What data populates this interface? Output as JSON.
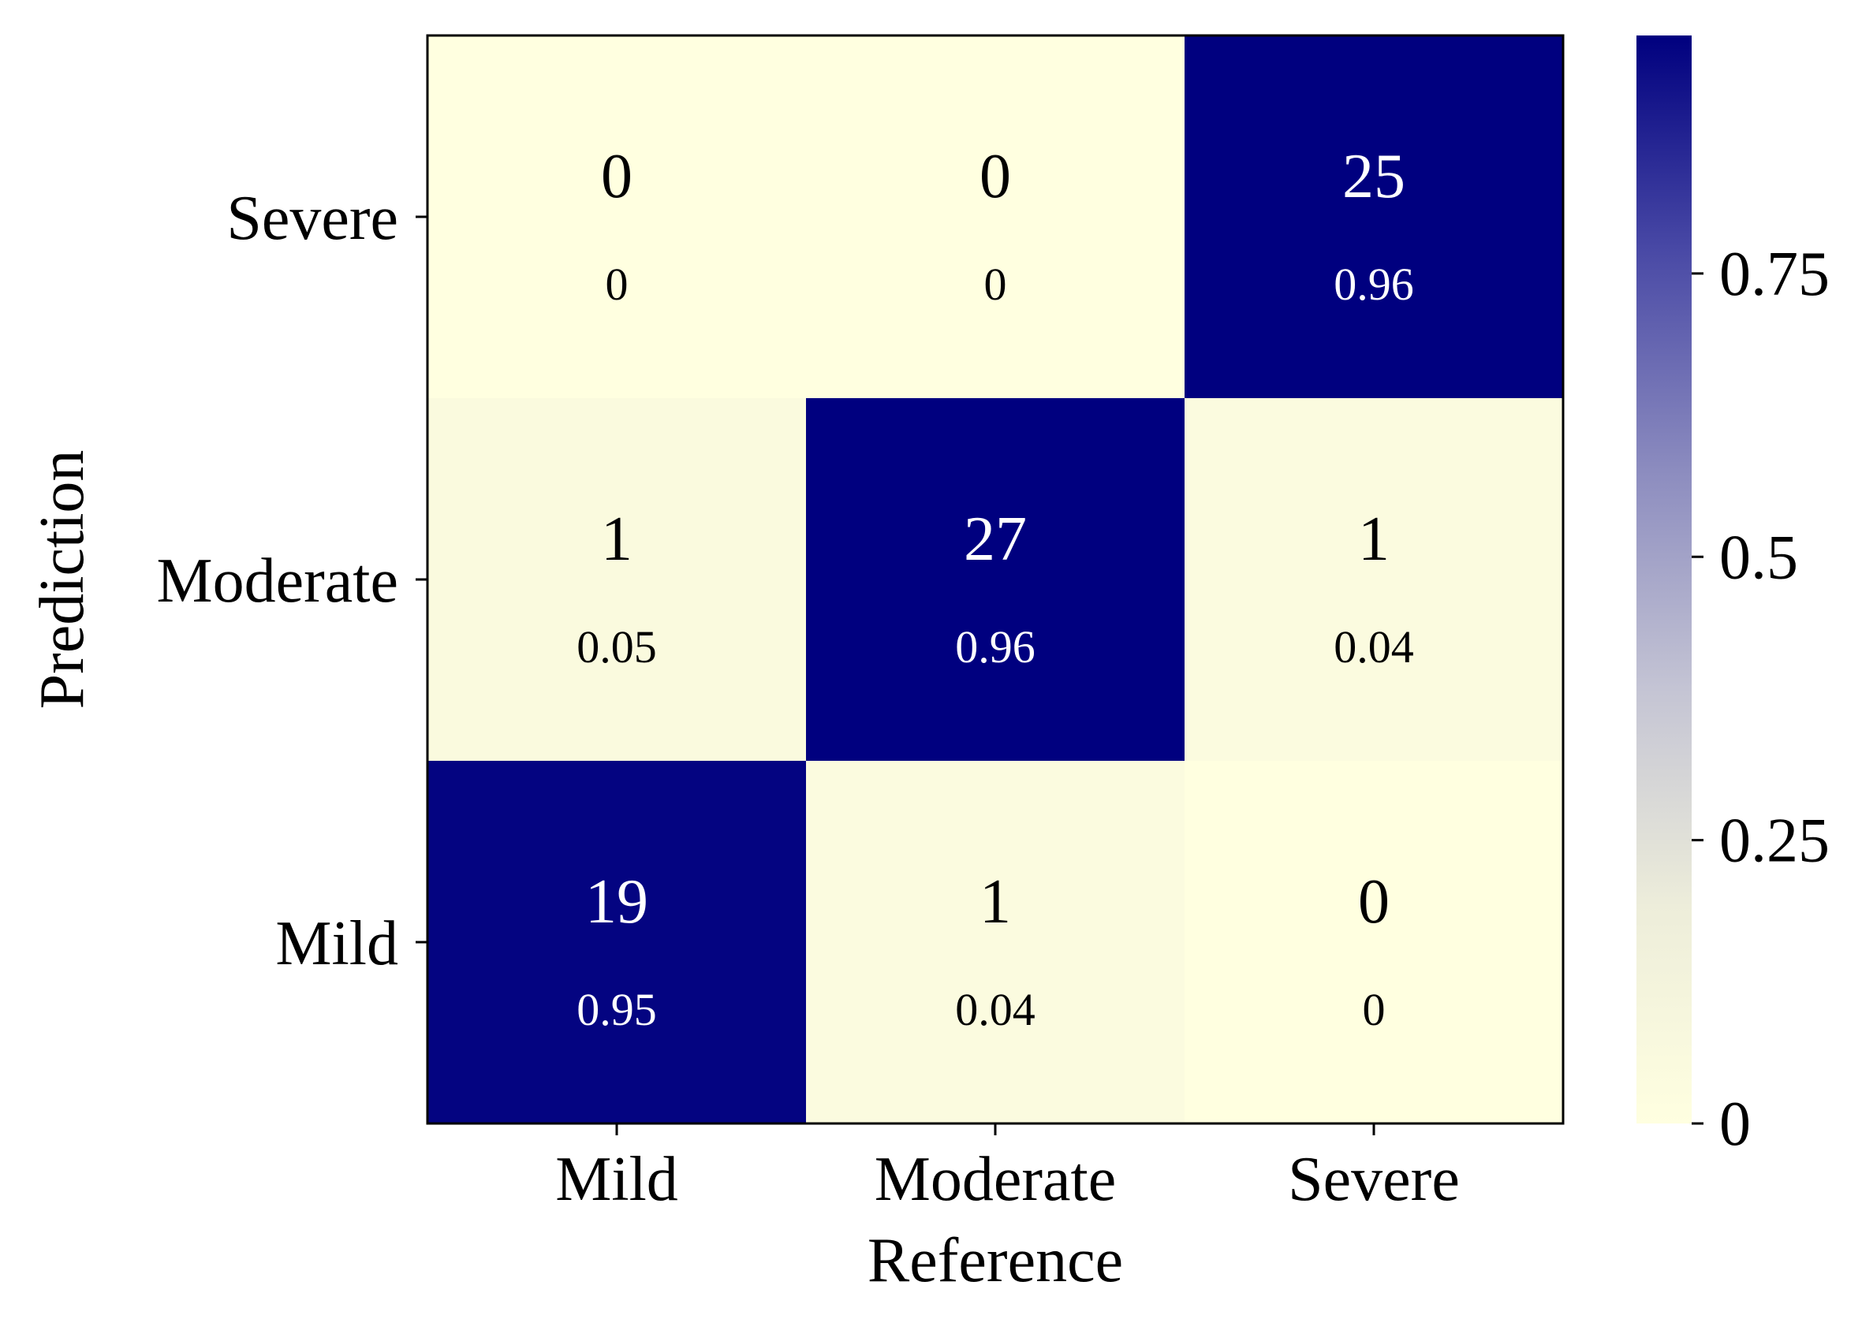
{
  "chart_data": {
    "type": "heatmap",
    "title": "",
    "xlabel": "Reference",
    "ylabel": "Prediction",
    "x_categories": [
      "Mild",
      "Moderate",
      "Severe"
    ],
    "y_categories_top_to_bottom": [
      "Severe",
      "Moderate",
      "Mild"
    ],
    "cells": [
      {
        "reference": "Mild",
        "prediction": "Severe",
        "count": "0",
        "fraction": "0",
        "value": 0
      },
      {
        "reference": "Moderate",
        "prediction": "Severe",
        "count": "0",
        "fraction": "0",
        "value": 0
      },
      {
        "reference": "Severe",
        "prediction": "Severe",
        "count": "25",
        "fraction": "0.96",
        "value": 0.96
      },
      {
        "reference": "Mild",
        "prediction": "Moderate",
        "count": "1",
        "fraction": "0.05",
        "value": 0.05
      },
      {
        "reference": "Moderate",
        "prediction": "Moderate",
        "count": "27",
        "fraction": "0.96",
        "value": 0.96
      },
      {
        "reference": "Severe",
        "prediction": "Moderate",
        "count": "1",
        "fraction": "0.04",
        "value": 0.04
      },
      {
        "reference": "Mild",
        "prediction": "Mild",
        "count": "19",
        "fraction": "0.95",
        "value": 0.95
      },
      {
        "reference": "Moderate",
        "prediction": "Mild",
        "count": "1",
        "fraction": "0.04",
        "value": 0.04
      },
      {
        "reference": "Severe",
        "prediction": "Mild",
        "count": "0",
        "fraction": "0",
        "value": 0
      }
    ],
    "colorbar": {
      "range": [
        0,
        0.96
      ],
      "ticks": [
        {
          "value": 0,
          "label": "0"
        },
        {
          "value": 0.25,
          "label": "0.25"
        },
        {
          "value": 0.5,
          "label": "0.5"
        },
        {
          "value": 0.75,
          "label": "0.75"
        }
      ],
      "colors": [
        "#ffffe0",
        "#ededda",
        "#c4c4d4",
        "#8c8cbf",
        "#4a4aa6",
        "#00007f"
      ]
    },
    "grid": false,
    "legend": "colorbar-right"
  }
}
